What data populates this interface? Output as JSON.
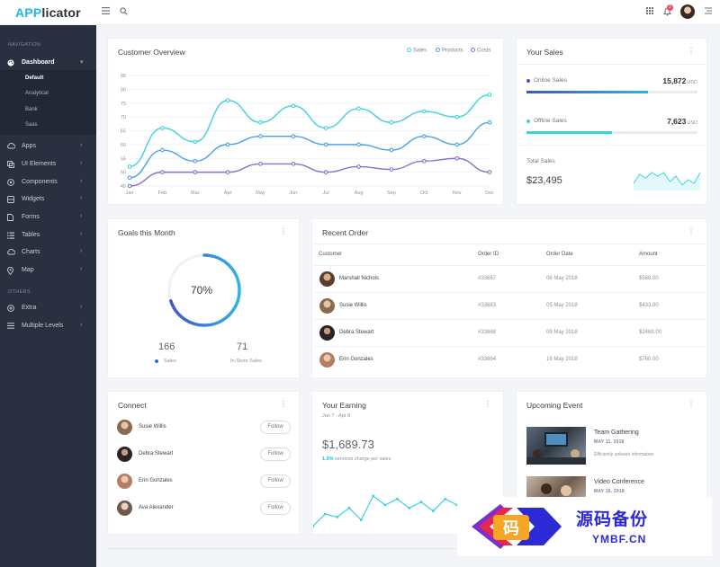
{
  "app": {
    "logo_prefix": "APP",
    "logo_suffix": "licator",
    "notification_count": "2"
  },
  "topbar": {
    "menu_icon": "hamburger-icon",
    "search_icon": "search-icon",
    "apps_icon": "grid-icon",
    "bell_icon": "bell-icon",
    "settings_icon": "list-icon"
  },
  "sidebar": {
    "nav_heading": "NAVIGATION",
    "others_heading": "OTHERS",
    "dashboard": {
      "label": "Dashboard",
      "icon": "palette-icon"
    },
    "dashboard_subs": [
      "Default",
      "Analytical",
      "Bank",
      "Saas"
    ],
    "items": [
      {
        "label": "Apps",
        "icon": "cloud-icon"
      },
      {
        "label": "UI Elements",
        "icon": "layers-icon"
      },
      {
        "label": "Components",
        "icon": "target-icon"
      },
      {
        "label": "Widgets",
        "icon": "widget-icon"
      },
      {
        "label": "Forms",
        "icon": "file-icon"
      },
      {
        "label": "Tables",
        "icon": "table-icon"
      },
      {
        "label": "Charts",
        "icon": "cloud-icon"
      },
      {
        "label": "Map",
        "icon": "map-pin-icon"
      }
    ],
    "other_items": [
      {
        "label": "Extra",
        "icon": "plus-circle-icon"
      },
      {
        "label": "Multiple Levels",
        "icon": "menu-icon"
      }
    ]
  },
  "customer_overview": {
    "title": "Customer Overview",
    "legend": [
      "Sales",
      "Products",
      "Costs"
    ],
    "colors": [
      "#3ed1dc",
      "#4aa3e0",
      "#8a6fce"
    ]
  },
  "chart_data": {
    "type": "line",
    "title": "Customer Overview",
    "categories": [
      "Jan",
      "Feb",
      "Mar",
      "Apr",
      "May",
      "Jun",
      "Jul",
      "Aug",
      "Sep",
      "Oct",
      "Nov",
      "Dec"
    ],
    "ylim": [
      45,
      85
    ],
    "yticks": [
      45,
      50,
      55,
      60,
      65,
      70,
      75,
      80,
      85
    ],
    "grid": true,
    "legend_position": "top-right",
    "series": [
      {
        "name": "Sales",
        "values": [
          52,
          66,
          61,
          76,
          68,
          74,
          66,
          73,
          68,
          72,
          70,
          78
        ]
      },
      {
        "name": "Products",
        "values": [
          48,
          58,
          54,
          60,
          63,
          63,
          60,
          60,
          58,
          63,
          60,
          68
        ]
      },
      {
        "name": "Costs",
        "values": [
          45,
          50,
          50,
          50,
          53,
          53,
          50,
          52,
          51,
          54,
          55,
          50
        ]
      }
    ]
  },
  "your_sales": {
    "title": "Your Sales",
    "online_label": "Online Sales",
    "online_value": "15,872",
    "online_unit": "USD",
    "online_fraction": 0.71,
    "offline_label": "Offline Sales",
    "offline_value": "7,623",
    "offline_unit": "USD",
    "offline_fraction": 0.5,
    "total_label": "Total Sales",
    "total_value": "$23,495",
    "sparkline": [
      3,
      8,
      6,
      9,
      7,
      9,
      4,
      7,
      2,
      5,
      3,
      9
    ]
  },
  "goals": {
    "title": "Goals this Month",
    "percent_label": "70%",
    "percent": 70,
    "sales_num": "166",
    "sales_label": "Sales",
    "instore_num": "71",
    "instore_label": "In-Store Sales"
  },
  "recent_order": {
    "title": "Recent Order",
    "headers": [
      "Customer",
      "Order ID",
      "Order Date",
      "Amount"
    ],
    "rows": [
      {
        "customer": "Marshall Nichols",
        "id": "#33667",
        "date": "06 May 2018",
        "amount": "$568.00"
      },
      {
        "customer": "Susie Willis",
        "id": "#33683",
        "date": "05 May 2018",
        "amount": "$433.00"
      },
      {
        "customer": "Debra Stewart",
        "id": "#33668",
        "date": "09 May 2018",
        "amount": "$2468.00"
      },
      {
        "customer": "Erin Gonzales",
        "id": "#33664",
        "date": "16 May 2018",
        "amount": "$760.00"
      }
    ]
  },
  "connect": {
    "title": "Connect",
    "button_label": "Follow",
    "people": [
      "Susie Willis",
      "Debra Stewart",
      "Erin Gonzales",
      "Ava Alexander"
    ]
  },
  "earning": {
    "title": "Your Earning",
    "subtitle": "Jan 7 - Apr 8",
    "amount": "$1,689.73",
    "change": "1.5%",
    "note": "services charge per sales",
    "sparkline": [
      2,
      6,
      5,
      8,
      4,
      12,
      9,
      11,
      8,
      10,
      7,
      11,
      9
    ]
  },
  "events": {
    "title": "Upcoming Event",
    "items": [
      {
        "title": "Team Gathering",
        "date": "MAY 11, 2018",
        "desc": "Efficiently unleash information"
      },
      {
        "title": "Video Conference",
        "date": "MAY 16, 2018",
        "desc": ""
      }
    ]
  },
  "watermark": {
    "big": "源码备份",
    "small": "YMBF.CN"
  }
}
